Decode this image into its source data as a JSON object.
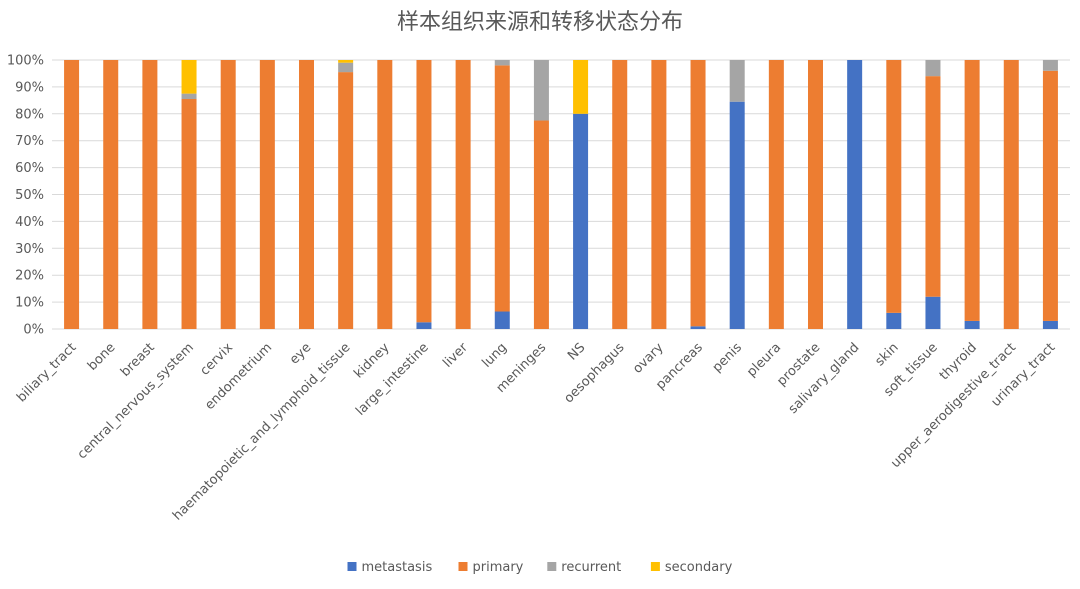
{
  "chart_data": {
    "type": "bar",
    "stacked": true,
    "title": "样本组织来源和转移状态分布",
    "xlabel": "",
    "ylabel": "",
    "ylim": [
      0,
      100
    ],
    "y_tick_labels": [
      "0%",
      "10%",
      "20%",
      "30%",
      "40%",
      "50%",
      "60%",
      "70%",
      "80%",
      "90%",
      "100%"
    ],
    "grid": true,
    "legend_position": "bottom",
    "categories": [
      "biliary_tract",
      "bone",
      "breast",
      "central_nervous_system",
      "cervix",
      "endometrium",
      "eye",
      "haematopoietic_and_lymphoid_tissue",
      "kidney",
      "large_intestine",
      "liver",
      "lung",
      "meninges",
      "NS",
      "oesophagus",
      "ovary",
      "pancreas",
      "penis",
      "pleura",
      "prostate",
      "salivary_gland",
      "skin",
      "soft_tissue",
      "thyroid",
      "upper_aerodigestive_tract",
      "urinary_tract"
    ],
    "series": [
      {
        "name": "metastasis",
        "color": "#4472C4",
        "values": [
          0,
          0,
          0,
          0,
          0,
          0,
          0,
          0,
          0,
          2.5,
          0,
          6.5,
          0,
          80,
          0,
          0,
          1,
          84.5,
          0,
          0,
          100,
          6,
          12,
          3,
          0,
          3
        ]
      },
      {
        "name": "primary",
        "color": "#ED7D31",
        "values": [
          100,
          100,
          100,
          85.5,
          100,
          100,
          100,
          95.5,
          100,
          97.5,
          100,
          91.5,
          77.5,
          0,
          100,
          100,
          99,
          0,
          100,
          100,
          0,
          94,
          82,
          97,
          100,
          93
        ]
      },
      {
        "name": "recurrent",
        "color": "#A5A5A5",
        "values": [
          0,
          0,
          0,
          2,
          0,
          0,
          0,
          3.5,
          0,
          0,
          0,
          2,
          22.5,
          0,
          0,
          0,
          0,
          15.5,
          0,
          0,
          0,
          0,
          6,
          0,
          0,
          4
        ]
      },
      {
        "name": "secondary",
        "color": "#FFC000",
        "values": [
          0,
          0,
          0,
          12.5,
          0,
          0,
          0,
          1,
          0,
          0,
          0,
          0,
          0,
          20,
          0,
          0,
          0,
          0,
          0,
          0,
          0,
          0,
          0,
          0,
          0,
          0
        ]
      }
    ]
  }
}
